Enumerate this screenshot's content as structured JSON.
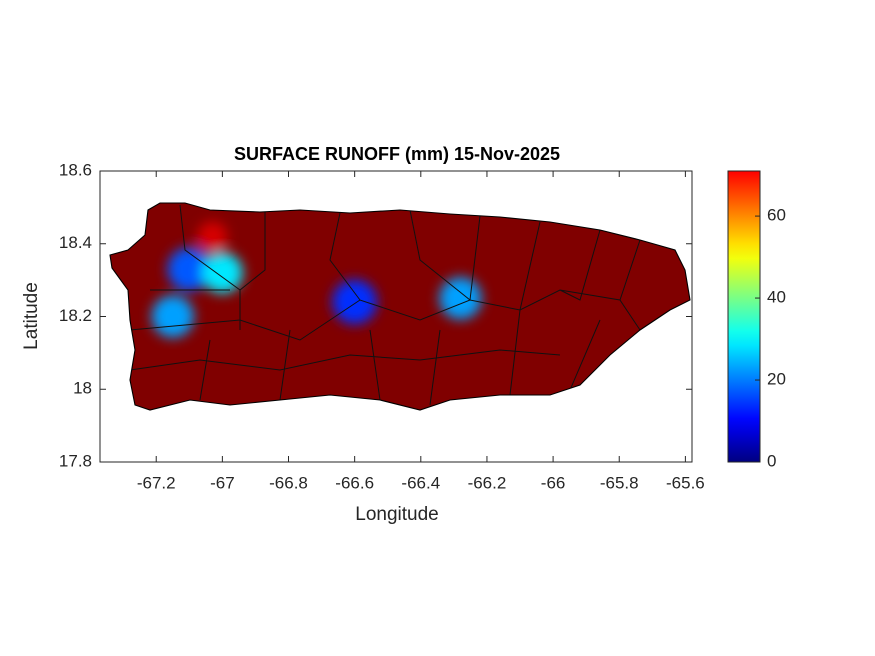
{
  "chart_data": {
    "type": "map",
    "title": "SURFACE RUNOFF (mm) 15-Nov-2025",
    "xlabel": "Longitude",
    "ylabel": "Latitude",
    "xlim": [
      -67.37,
      -65.58
    ],
    "xticks": [
      -67.2,
      -67,
      -66.8,
      -66.6,
      -66.4,
      -66.2,
      -66,
      -65.8,
      -65.6
    ],
    "ylim": [
      17.8,
      18.6
    ],
    "yticks": [
      17.8,
      18,
      18.2,
      18.4,
      18.6
    ],
    "colorbar": {
      "clim": [
        0,
        71
      ],
      "ticks": [
        0,
        20,
        40,
        60
      ]
    },
    "hotspots": {
      "lon": [
        -67.1,
        -67.0,
        -67.15,
        -66.6,
        -66.28,
        -67.03
      ],
      "lat": [
        18.33,
        18.32,
        18.2,
        18.24,
        18.25,
        18.42
      ],
      "values": [
        15,
        25,
        20,
        12,
        20,
        65
      ]
    }
  }
}
